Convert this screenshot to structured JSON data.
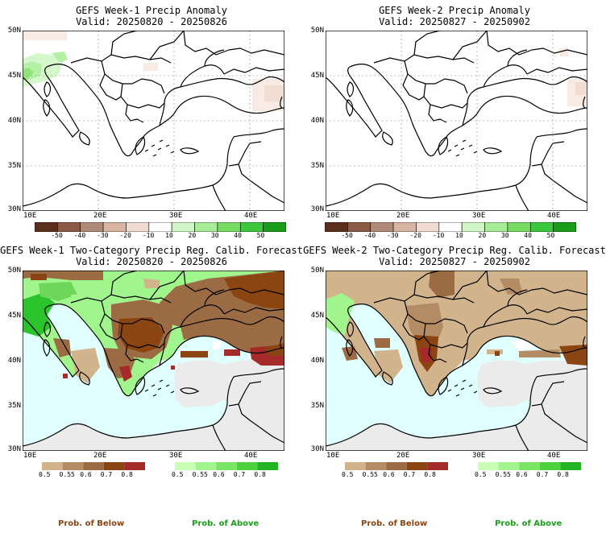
{
  "panels": [
    {
      "title": "GEFS Week-1 Precip Anomaly",
      "valid": "Valid: 20250820 - 20250826"
    },
    {
      "title": "GEFS Week-2 Precip Anomaly",
      "valid": "Valid: 20250827 - 20250902"
    },
    {
      "title": "GEFS Week-1 Two-Category Precip Reg. Calib. Forecast",
      "valid": "Valid: 20250820 - 20250826"
    },
    {
      "title": "GEFS Week-2 Two-Category Precip Reg. Calib. Forecast",
      "valid": "Valid: 20250827 - 20250902"
    }
  ],
  "axes": {
    "lat_ticks": [
      "50N",
      "45N",
      "40N",
      "35N",
      "30N"
    ],
    "lon_ticks": [
      "10E",
      "20E",
      "30E",
      "40E"
    ]
  },
  "anomaly_colorbar": {
    "labels": [
      "-50",
      "-40",
      "-30",
      "-20",
      "-10",
      "10",
      "20",
      "30",
      "40",
      "50"
    ],
    "colors": [
      "#5c2e1e",
      "#8b5a44",
      "#b08a78",
      "#d8b5a3",
      "#f1dcd2",
      "#ffffff",
      "#d2f5c8",
      "#a8ec98",
      "#78dc64",
      "#3cc83c",
      "#1a9e1a"
    ]
  },
  "prob_colorbar": {
    "below_labels": [
      "0.5",
      "0.55",
      "0.6",
      "0.7",
      "0.8"
    ],
    "above_labels": [
      "0.5",
      "0.55",
      "0.6",
      "0.7",
      "0.8"
    ],
    "below_colors": [
      "#d2b48c",
      "#b48c64",
      "#9b6b43",
      "#8b4513",
      "#a52a2a"
    ],
    "above_colors": [
      "#c8ffb4",
      "#a0f58c",
      "#78e664",
      "#4cd23c",
      "#22b422"
    ]
  },
  "legend": {
    "below": "Prob. of Below",
    "above": "Prob. of Above"
  },
  "map_colors": {
    "sea": "#e0ffff",
    "no_data": "#ebebeb",
    "land_light_below": "#d2b48c",
    "land_mid_below": "#9b6b43",
    "land_dark_below": "#8b4513",
    "land_red": "#a52a2a",
    "land_light_above": "#a0f58c",
    "land_mid_above": "#6ed65a",
    "land_dark_above": "#2cc42c",
    "anom_green": "#b4f0a6",
    "anom_pink": "#f4e0d6"
  }
}
